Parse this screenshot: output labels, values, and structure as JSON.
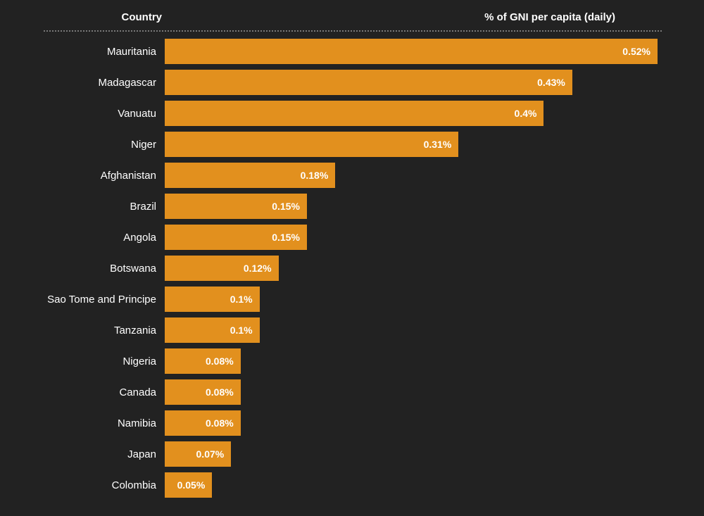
{
  "header": {
    "country_label": "Country",
    "value_label": "% of GNI per capita (daily)"
  },
  "colors": {
    "background": "#222222",
    "bar": "#e2901e",
    "text": "#ffffff",
    "divider": "#7a7a7a"
  },
  "chart_data": {
    "type": "bar",
    "orientation": "horizontal",
    "title": "",
    "xlabel": "% of GNI per capita (daily)",
    "ylabel": "Country",
    "xlim": [
      0,
      0.52
    ],
    "grid": false,
    "legend": false,
    "categories": [
      "Mauritania",
      "Madagascar",
      "Vanuatu",
      "Niger",
      "Afghanistan",
      "Brazil",
      "Angola",
      "Botswana",
      "Sao Tome and Principe",
      "Tanzania",
      "Nigeria",
      "Canada",
      "Namibia",
      "Japan",
      "Colombia"
    ],
    "values": [
      0.52,
      0.43,
      0.4,
      0.31,
      0.18,
      0.15,
      0.15,
      0.12,
      0.1,
      0.1,
      0.08,
      0.08,
      0.08,
      0.07,
      0.05
    ],
    "value_labels": [
      "0.52%",
      "0.43%",
      "0.4%",
      "0.31%",
      "0.18%",
      "0.15%",
      "0.15%",
      "0.12%",
      "0.1%",
      "0.1%",
      "0.08%",
      "0.08%",
      "0.08%",
      "0.07%",
      "0.05%"
    ]
  }
}
